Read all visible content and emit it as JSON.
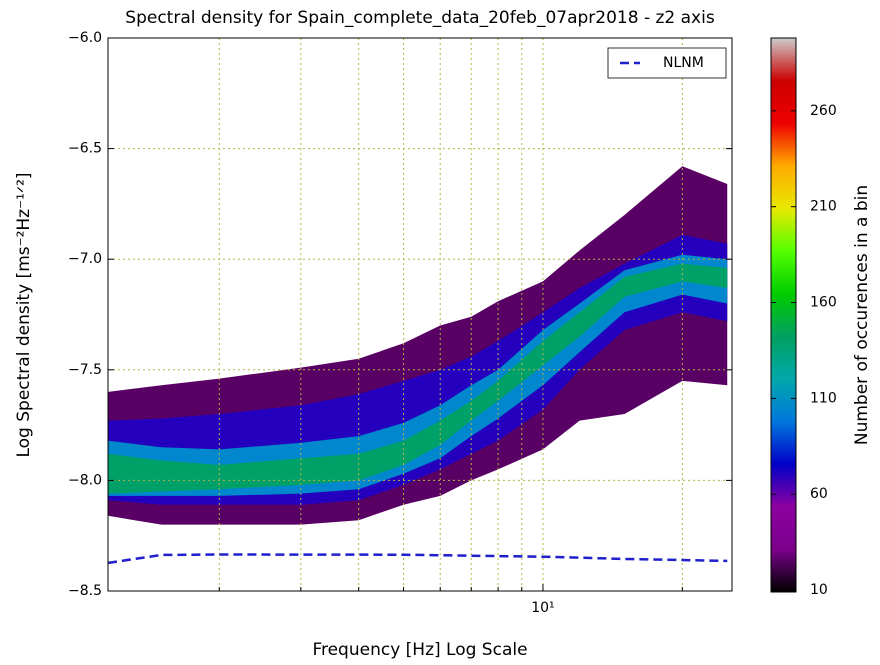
{
  "chart_data": {
    "type": "density-bands",
    "title": "Spectral density for Spain_complete_data_20feb_07apr2018 - z2 axis",
    "xlabel": "Frequency [Hz] Log Scale",
    "ylabel": "Log Spectral density [ms⁻²Hz⁻¹ᐟ²]",
    "colorbar_label": "Number of occurences in a bin",
    "xscale": "log",
    "xlim": [
      1.15,
      25.6
    ],
    "ylim": [
      -8.5,
      -6.0
    ],
    "xticks": [
      {
        "value": 10,
        "label": "10¹"
      }
    ],
    "xminorticks": [
      2,
      3,
      4,
      5,
      6,
      7,
      8,
      9,
      20
    ],
    "yticks": [
      {
        "value": -8.5,
        "label": "−8.5"
      },
      {
        "value": -8.0,
        "label": "−8.0"
      },
      {
        "value": -7.5,
        "label": "−7.5"
      },
      {
        "value": -7.0,
        "label": "−7.0"
      },
      {
        "value": -6.5,
        "label": "−6.5"
      },
      {
        "value": -6.0,
        "label": "−6.0"
      }
    ],
    "grid": true,
    "clim": [
      9,
      298
    ],
    "cticks": [
      10,
      60,
      110,
      160,
      210,
      260
    ],
    "cmap": [
      "#000000",
      "#7a008a",
      "#8c00a0",
      "#0000c8",
      "#0077dd",
      "#00a8aa",
      "#00a060",
      "#00cc00",
      "#55ff00",
      "#e8e800",
      "#ffaa00",
      "#ee0000",
      "#cc0000",
      "#cccccc"
    ],
    "bands_x": [
      1.15,
      1.5,
      2,
      3,
      4,
      5,
      6,
      7,
      8,
      10,
      12,
      15,
      20,
      25
    ],
    "bands": [
      {
        "count": 25,
        "upper": [
          -7.6,
          -7.57,
          -7.54,
          -7.49,
          -7.45,
          -7.38,
          -7.3,
          -7.26,
          -7.19,
          -7.1,
          -6.96,
          -6.8,
          -6.58,
          -6.66
        ],
        "lower": [
          -8.16,
          -8.2,
          -8.2,
          -8.2,
          -8.18,
          -8.11,
          -8.07,
          -8.0,
          -7.95,
          -7.86,
          -7.73,
          -7.7,
          -7.55,
          -7.57
        ]
      },
      {
        "count": 70,
        "upper": [
          -7.73,
          -7.72,
          -7.7,
          -7.66,
          -7.61,
          -7.55,
          -7.5,
          -7.44,
          -7.37,
          -7.24,
          -7.13,
          -7.02,
          -6.89,
          -6.93
        ],
        "lower": [
          -8.09,
          -8.11,
          -8.11,
          -8.11,
          -8.09,
          -8.02,
          -7.95,
          -7.88,
          -7.82,
          -7.68,
          -7.5,
          -7.32,
          -7.24,
          -7.28
        ]
      },
      {
        "count": 105,
        "upper": [
          -7.82,
          -7.85,
          -7.86,
          -7.83,
          -7.8,
          -7.74,
          -7.66,
          -7.57,
          -7.5,
          -7.32,
          -7.2,
          -7.05,
          -6.98,
          -7.0
        ],
        "lower": [
          -8.07,
          -8.07,
          -8.07,
          -8.06,
          -8.04,
          -7.97,
          -7.9,
          -7.8,
          -7.72,
          -7.57,
          -7.42,
          -7.24,
          -7.16,
          -7.2
        ]
      },
      {
        "count": 140,
        "upper": [
          -7.88,
          -7.91,
          -7.93,
          -7.9,
          -7.88,
          -7.82,
          -7.73,
          -7.64,
          -7.55,
          -7.37,
          -7.24,
          -7.08,
          -7.02,
          -7.04
        ],
        "lower": [
          -8.06,
          -8.05,
          -8.04,
          -8.02,
          -8.0,
          -7.93,
          -7.84,
          -7.73,
          -7.64,
          -7.48,
          -7.35,
          -7.17,
          -7.1,
          -7.13
        ]
      }
    ],
    "series": [
      {
        "name": "NLNM",
        "color": "#1f1fcc",
        "x": [
          1.15,
          1.5,
          2,
          5,
          10,
          15,
          25
        ],
        "values": [
          -8.373,
          -8.337,
          -8.335,
          -8.336,
          -8.345,
          -8.355,
          -8.364
        ]
      }
    ],
    "legend": "upper right"
  }
}
